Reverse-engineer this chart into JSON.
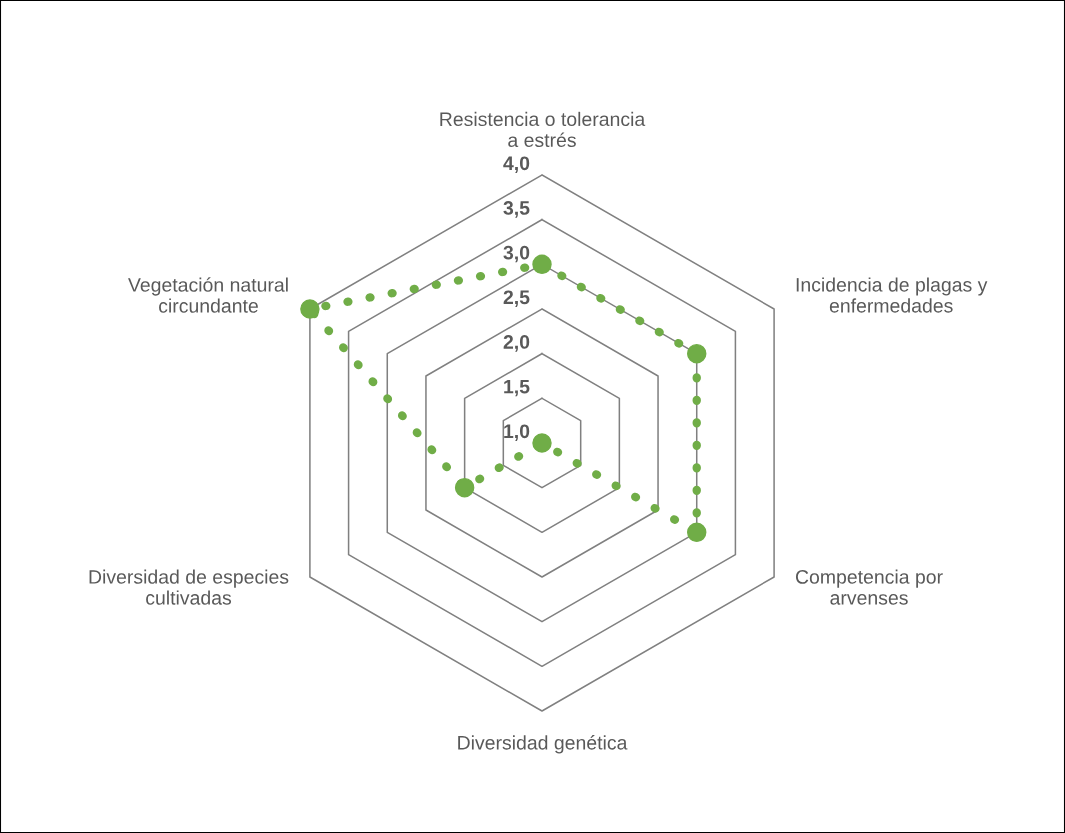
{
  "chart_data": {
    "type": "radar",
    "categories": [
      "Resistencia o tolerancia\na estrés",
      "Incidencia de plagas y\nenfermedades",
      "Competencia por\narvenses",
      "Diversidad genética",
      "Diversidad de especies\ncultivadas",
      "Vegetación natural\ncircundante"
    ],
    "series": [
      {
        "color": "#70ad47",
        "values": [
          3.0,
          3.0,
          3.0,
          1.0,
          2.0,
          4.0
        ]
      }
    ],
    "ylim": [
      1,
      4
    ],
    "yticks": [
      {
        "value": 1,
        "label": "1,0"
      },
      {
        "value": 1.5,
        "label": "1,5"
      },
      {
        "value": 2,
        "label": "2,0"
      },
      {
        "value": 2.5,
        "label": "2,5"
      },
      {
        "value": 3,
        "label": "3,0"
      },
      {
        "value": 3.5,
        "label": "3,5"
      },
      {
        "value": 4,
        "label": "4,0"
      }
    ],
    "marker": "circle",
    "line_style": "dotted",
    "legend": false
  }
}
